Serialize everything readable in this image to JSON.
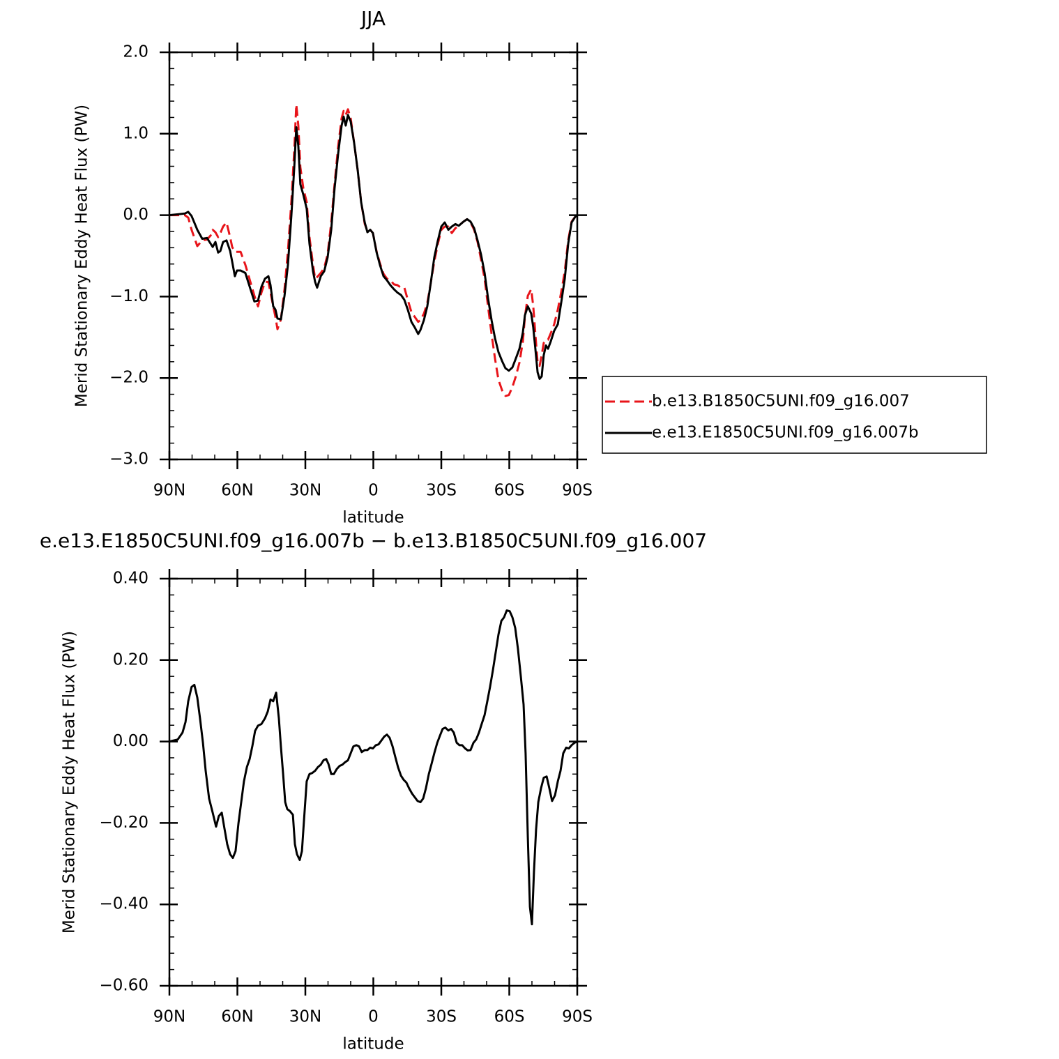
{
  "chart_data": [
    {
      "type": "line",
      "title": "JJA",
      "xlabel": "latitude",
      "ylabel": "Merid Stationary Eddy Heat Flux (PW)",
      "x": [
        90,
        83.2,
        81.7,
        80.2,
        77.7,
        75.5,
        73.4,
        71.8,
        70.9,
        69.7,
        68.5,
        67.5,
        66.3,
        64.8,
        63.2,
        62.3,
        61.1,
        60.2,
        58.6,
        56.5,
        54.9,
        52.5,
        50.9,
        49.4,
        47.8,
        46.3,
        45.4,
        44.2,
        43.2,
        42.3,
        40.8,
        39.2,
        37.7,
        36.2,
        34.9,
        34.0,
        33.1,
        32.2,
        30.9,
        29.4,
        28.2,
        26.6,
        25.7,
        24.8,
        23.2,
        21.7,
        20.2,
        18.6,
        17.1,
        15.5,
        14.0,
        13.1,
        12.2,
        11.2,
        10.0,
        8.5,
        6.9,
        5.4,
        3.8,
        2.6,
        1.4,
        0.2,
        -1.4,
        -2.9,
        -4.5,
        -6.0,
        -7.5,
        -9.1,
        -10.6,
        -12.2,
        -13.7,
        -15.2,
        -16.8,
        -18.3,
        -19.8,
        -20.8,
        -22.3,
        -23.8,
        -25.4,
        -26.9,
        -28.5,
        -30.0,
        -31.5,
        -33.1,
        -34.6,
        -36.2,
        -37.7,
        -39.8,
        -41.4,
        -42.9,
        -44.5,
        -46.0,
        -47.5,
        -49.1,
        -50.6,
        -52.2,
        -53.7,
        -55.2,
        -56.8,
        -58.3,
        -59.8,
        -61.4,
        -62.9,
        -64.5,
        -66.0,
        -66.9,
        -68.2,
        -69.7,
        -70.6,
        -71.5,
        -72.5,
        -73.4,
        -74.3,
        -75.2,
        -76.2,
        -77.1,
        -78.3,
        -79.8,
        -81.4,
        -82.9,
        -84.5,
        -86.0,
        -87.5,
        -89.1,
        -90
      ],
      "series": [
        {
          "name": "b.e13.B1850C5UNI.f09_g16.007",
          "color": "#e8141a",
          "dash": true,
          "values": [
            0,
            0,
            -0.03,
            -0.18,
            -0.38,
            -0.31,
            -0.3,
            -0.25,
            -0.18,
            -0.21,
            -0.27,
            -0.22,
            -0.14,
            -0.09,
            -0.27,
            -0.39,
            -0.45,
            -0.45,
            -0.45,
            -0.61,
            -0.76,
            -0.99,
            -1.12,
            -0.95,
            -0.82,
            -0.82,
            -0.95,
            -1.12,
            -1.25,
            -1.4,
            -1.28,
            -0.91,
            -0.44,
            0.16,
            0.8,
            1.36,
            1.1,
            0.59,
            0.33,
            0.16,
            -0.27,
            -0.61,
            -0.78,
            -0.76,
            -0.71,
            -0.65,
            -0.48,
            -0.09,
            0.38,
            0.85,
            1.19,
            1.28,
            1.23,
            1.3,
            1.19,
            0.89,
            0.55,
            0.16,
            -0.11,
            -0.19,
            -0.18,
            -0.22,
            -0.44,
            -0.59,
            -0.72,
            -0.78,
            -0.8,
            -0.85,
            -0.86,
            -0.89,
            -0.89,
            -1.04,
            -1.19,
            -1.25,
            -1.31,
            -1.29,
            -1.21,
            -1.08,
            -0.82,
            -0.57,
            -0.35,
            -0.18,
            -0.14,
            -0.14,
            -0.22,
            -0.16,
            -0.13,
            -0.08,
            -0.05,
            -0.09,
            -0.18,
            -0.33,
            -0.54,
            -0.78,
            -1.12,
            -1.46,
            -1.76,
            -2.02,
            -2.15,
            -2.22,
            -2.21,
            -2.11,
            -1.98,
            -1.81,
            -1.55,
            -1.25,
            -0.99,
            -0.91,
            -1.12,
            -1.46,
            -1.81,
            -1.85,
            -1.72,
            -1.57,
            -1.53,
            -1.53,
            -1.45,
            -1.34,
            -1.16,
            -0.95,
            -0.69,
            -0.31,
            -0.08,
            -0.02,
            0
          ]
        },
        {
          "name": "e.e13.E1850C5UNI.f09_g16.007b",
          "color": "#000000",
          "dash": false,
          "values": [
            0,
            0.02,
            0.04,
            -0.01,
            -0.18,
            -0.29,
            -0.28,
            -0.35,
            -0.39,
            -0.33,
            -0.46,
            -0.44,
            -0.33,
            -0.31,
            -0.44,
            -0.57,
            -0.75,
            -0.68,
            -0.68,
            -0.71,
            -0.85,
            -1.06,
            -1.05,
            -0.88,
            -0.78,
            -0.75,
            -0.86,
            -1.12,
            -1.16,
            -1.27,
            -1.28,
            -0.99,
            -0.61,
            -0.01,
            0.59,
            1.08,
            0.85,
            0.38,
            0.25,
            0.08,
            -0.35,
            -0.69,
            -0.82,
            -0.89,
            -0.75,
            -0.69,
            -0.52,
            -0.18,
            0.33,
            0.76,
            1.1,
            1.21,
            1.1,
            1.23,
            1.15,
            0.89,
            0.55,
            0.16,
            -0.09,
            -0.21,
            -0.18,
            -0.22,
            -0.45,
            -0.61,
            -0.75,
            -0.8,
            -0.86,
            -0.91,
            -0.95,
            -0.98,
            -1.04,
            -1.16,
            -1.31,
            -1.38,
            -1.46,
            -1.41,
            -1.29,
            -1.12,
            -0.82,
            -0.52,
            -0.31,
            -0.14,
            -0.09,
            -0.18,
            -0.14,
            -0.11,
            -0.13,
            -0.08,
            -0.05,
            -0.08,
            -0.16,
            -0.31,
            -0.48,
            -0.71,
            -1.02,
            -1.29,
            -1.51,
            -1.68,
            -1.79,
            -1.88,
            -1.91,
            -1.87,
            -1.76,
            -1.64,
            -1.44,
            -1.23,
            -1.12,
            -1.21,
            -1.38,
            -1.64,
            -1.93,
            -2.01,
            -1.98,
            -1.72,
            -1.6,
            -1.64,
            -1.55,
            -1.42,
            -1.34,
            -1.08,
            -0.78,
            -0.35,
            -0.09,
            -0.02,
            0
          ]
        }
      ],
      "xlim": [
        90,
        -90
      ],
      "xticks": [
        {
          "value": 90,
          "label": "90N"
        },
        {
          "value": 60,
          "label": "60N"
        },
        {
          "value": 30,
          "label": "30N"
        },
        0,
        {
          "value": -30,
          "label": "30S"
        },
        {
          "value": -60,
          "label": "60S"
        },
        {
          "value": -90,
          "label": "90S"
        }
      ],
      "xminorticks": [
        80,
        70,
        50,
        40,
        20,
        10,
        -10,
        -20,
        -40,
        -50,
        -70,
        -80
      ],
      "ylim": [
        -3,
        2
      ],
      "yticks": [
        {
          "value": 2,
          "label": "2.0"
        },
        {
          "value": 1,
          "label": "1.0"
        },
        {
          "value": 0,
          "label": "0.0"
        },
        {
          "value": -1,
          "label": "−1.0"
        },
        {
          "value": -2,
          "label": "−2.0"
        },
        {
          "value": -3,
          "label": "−3.0"
        }
      ],
      "yminorticks": [
        1.8,
        1.6,
        1.4,
        1.2,
        0.8,
        0.6,
        0.4,
        0.2,
        -0.2,
        -0.4,
        -0.6,
        -0.8,
        -1.2,
        -1.4,
        -1.6,
        -1.8,
        -2.2,
        -2.4,
        -2.6,
        -2.8
      ],
      "legend": "outside-right"
    },
    {
      "type": "line",
      "title": "e.e13.E1850C5UNI.f09_g16.007b − b.e13.B1850C5UNI.f09_g16.007",
      "xlabel": "latitude",
      "ylabel": "Merid Stationary Eddy Heat Flux (PW)",
      "x": [
        90,
        86.3,
        84.2,
        82.9,
        81.7,
        80.2,
        79.0,
        77.7,
        76.5,
        75.2,
        74.0,
        72.5,
        70.9,
        69.4,
        68.2,
        66.9,
        65.7,
        64.5,
        63.2,
        62.0,
        60.8,
        59.5,
        58.3,
        57.1,
        55.8,
        54.6,
        53.4,
        52.2,
        50.9,
        49.4,
        47.8,
        46.6,
        45.4,
        44.2,
        42.9,
        41.7,
        40.8,
        39.8,
        38.9,
        38.0,
        36.8,
        35.5,
        34.6,
        33.7,
        32.5,
        31.5,
        30.6,
        29.4,
        28.2,
        26.9,
        25.7,
        24.5,
        23.2,
        22.0,
        20.8,
        19.8,
        18.6,
        17.4,
        16.2,
        14.9,
        13.7,
        12.5,
        11.2,
        10.0,
        8.8,
        7.5,
        6.3,
        5.1,
        3.8,
        2.6,
        1.4,
        0.2,
        -1.1,
        -2.3,
        -3.5,
        -4.8,
        -6.0,
        -7.2,
        -8.5,
        -9.7,
        -10.9,
        -12.2,
        -13.4,
        -14.6,
        -15.8,
        -17.1,
        -18.3,
        -19.5,
        -20.8,
        -22.0,
        -23.2,
        -24.5,
        -25.7,
        -26.9,
        -28.2,
        -29.4,
        -30.6,
        -31.8,
        -33.1,
        -34.3,
        -35.5,
        -36.8,
        -38.0,
        -39.2,
        -40.5,
        -41.7,
        -42.9,
        -44.2,
        -45.4,
        -46.6,
        -47.8,
        -49.1,
        -50.3,
        -51.5,
        -52.8,
        -54.0,
        -55.2,
        -56.5,
        -57.7,
        -58.9,
        -60.2,
        -61.4,
        -62.6,
        -63.8,
        -65.1,
        -66.3,
        -67.2,
        -68.2,
        -69.1,
        -70.0,
        -70.9,
        -71.8,
        -72.8,
        -74.0,
        -75.2,
        -76.5,
        -77.7,
        -78.9,
        -80.2,
        -81.4,
        -82.6,
        -83.8,
        -85.1,
        -86.3,
        -87.5,
        -88.8,
        -90
      ],
      "values": [
        0,
        0.005,
        0.022,
        0.048,
        0.099,
        0.134,
        0.139,
        0.108,
        0.057,
        -0.003,
        -0.072,
        -0.14,
        -0.175,
        -0.209,
        -0.183,
        -0.175,
        -0.214,
        -0.252,
        -0.277,
        -0.286,
        -0.269,
        -0.2,
        -0.149,
        -0.098,
        -0.063,
        -0.043,
        -0.012,
        0.026,
        0.039,
        0.043,
        0.057,
        0.074,
        0.103,
        0.099,
        0.12,
        0.057,
        -0.012,
        -0.08,
        -0.149,
        -0.166,
        -0.171,
        -0.18,
        -0.252,
        -0.277,
        -0.291,
        -0.269,
        -0.192,
        -0.098,
        -0.08,
        -0.077,
        -0.072,
        -0.063,
        -0.057,
        -0.046,
        -0.043,
        -0.055,
        -0.08,
        -0.08,
        -0.068,
        -0.06,
        -0.057,
        -0.051,
        -0.046,
        -0.029,
        -0.012,
        -0.009,
        -0.012,
        -0.026,
        -0.021,
        -0.021,
        -0.015,
        -0.017,
        -0.009,
        -0.007,
        0.002,
        0.012,
        0.017,
        0.009,
        -0.012,
        -0.038,
        -0.063,
        -0.084,
        -0.094,
        -0.101,
        -0.115,
        -0.128,
        -0.137,
        -0.146,
        -0.149,
        -0.14,
        -0.115,
        -0.08,
        -0.055,
        -0.029,
        -0.003,
        0.014,
        0.031,
        0.034,
        0.027,
        0.031,
        0.022,
        -0.003,
        -0.009,
        -0.009,
        -0.017,
        -0.022,
        -0.021,
        -0.003,
        0.005,
        0.022,
        0.043,
        0.065,
        0.099,
        0.134,
        0.176,
        0.219,
        0.262,
        0.296,
        0.305,
        0.322,
        0.32,
        0.305,
        0.279,
        0.228,
        0.159,
        0.091,
        -0.029,
        -0.235,
        -0.406,
        -0.449,
        -0.32,
        -0.217,
        -0.149,
        -0.115,
        -0.089,
        -0.086,
        -0.115,
        -0.146,
        -0.132,
        -0.098,
        -0.072,
        -0.029,
        -0.015,
        -0.017,
        -0.009,
        -0.003,
        0
      ],
      "color": "#000000",
      "xlim": [
        90,
        -90
      ],
      "xticks": [
        {
          "value": 90,
          "label": "90N"
        },
        {
          "value": 60,
          "label": "60N"
        },
        {
          "value": 30,
          "label": "30N"
        },
        0,
        {
          "value": -30,
          "label": "30S"
        },
        {
          "value": -60,
          "label": "60S"
        },
        {
          "value": -90,
          "label": "90S"
        }
      ],
      "xminorticks": [
        80,
        70,
        50,
        40,
        20,
        10,
        -10,
        -20,
        -40,
        -50,
        -70,
        -80
      ],
      "ylim": [
        -0.6,
        0.4
      ],
      "yticks": [
        {
          "value": 0.4,
          "label": "0.40"
        },
        {
          "value": 0.2,
          "label": "0.20"
        },
        {
          "value": 0,
          "label": "0.00"
        },
        {
          "value": -0.2,
          "label": "−0.20"
        },
        {
          "value": -0.4,
          "label": "−0.40"
        },
        {
          "value": -0.6,
          "label": "−0.60"
        }
      ],
      "yminorticks": [
        0.36,
        0.32,
        0.28,
        0.24,
        0.16,
        0.12,
        0.08,
        0.04,
        -0.04,
        -0.08,
        -0.12,
        -0.16,
        -0.24,
        -0.28,
        -0.32,
        -0.36,
        -0.44,
        -0.48,
        -0.52,
        -0.56
      ]
    }
  ]
}
